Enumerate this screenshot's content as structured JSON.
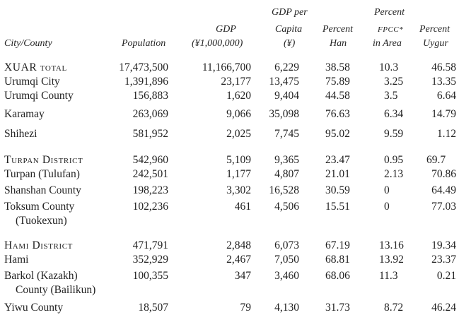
{
  "table": {
    "headers": {
      "city": "City/County",
      "population": "Population",
      "gdp_1": "GDP",
      "gdp_2": "(¥1,000,000)",
      "gdppc_1": "GDP per",
      "gdppc_2": "Capita",
      "gdppc_3": "(¥)",
      "han_1": "Percent",
      "han_2": "Han",
      "fpcc_1": "Percent",
      "fpcc_2": "FPCC*",
      "fpcc_3": "in Area",
      "uygur_1": "Percent",
      "uygur_2": "Uygur"
    },
    "rows": [
      {
        "name": "XUAR total",
        "population": "17,473,500",
        "gdp": "11,166,700",
        "gdp_pc": "6,229",
        "han": "38.58",
        "fpcc": "10.3",
        "uygur": "46.58"
      },
      {
        "name": "Urumqi City",
        "population": "1,391,896",
        "gdp": "23,177",
        "gdp_pc": "13,475",
        "han": "75.89",
        "fpcc": "3.25",
        "uygur": "13.35"
      },
      {
        "name": "Urumqi County",
        "population": "156,883",
        "gdp": "1,620",
        "gdp_pc": "9,404",
        "han": "44.58",
        "fpcc": "3.5",
        "uygur": "6.64"
      },
      {
        "name": "Karamay",
        "population": "263,069",
        "gdp": "9,066",
        "gdp_pc": "35,098",
        "han": "76.63",
        "fpcc": "6.34",
        "uygur": "14.79"
      },
      {
        "name": "Shihezi",
        "population": "581,952",
        "gdp": "2,025",
        "gdp_pc": "7,745",
        "han": "95.02",
        "fpcc": "9.59",
        "uygur": "1.12"
      },
      {
        "name": "Turpan District",
        "population": "542,960",
        "gdp": "5,109",
        "gdp_pc": "9,365",
        "han": "23.47",
        "fpcc": "0.95",
        "uygur": "69.7"
      },
      {
        "name": "Turpan (Tulufan)",
        "population": "242,501",
        "gdp": "1,177",
        "gdp_pc": "4,807",
        "han": "21.01",
        "fpcc": "2.13",
        "uygur": "70.86"
      },
      {
        "name": "Shanshan County",
        "population": "198,223",
        "gdp": "3,302",
        "gdp_pc": "16,528",
        "han": "30.59",
        "fpcc": "0",
        "uygur": "64.49"
      },
      {
        "name": "Toksum County",
        "name_2": "(Tuokexun)",
        "population": "102,236",
        "gdp": "461",
        "gdp_pc": "4,506",
        "han": "15.51",
        "fpcc": "0",
        "uygur": "77.03"
      },
      {
        "name": "Hami District",
        "population": "471,791",
        "gdp": "2,848",
        "gdp_pc": "6,073",
        "han": "67.19",
        "fpcc": "13.16",
        "uygur": "19.34"
      },
      {
        "name": "Hami",
        "population": "352,929",
        "gdp": "2,467",
        "gdp_pc": "7,050",
        "han": "68.81",
        "fpcc": "13.92",
        "uygur": "23.37"
      },
      {
        "name": "Barkol (Kazakh)",
        "name_2": "County (Bailikun)",
        "population": "100,355",
        "gdp": "347",
        "gdp_pc": "3,460",
        "han": "68.06",
        "fpcc": "11.3",
        "uygur": "0.21"
      },
      {
        "name": "Yiwu County",
        "population": "18,507",
        "gdp": "79",
        "gdp_pc": "4,130",
        "han": "31.73",
        "fpcc": "8.72",
        "uygur": "46.24"
      }
    ]
  }
}
